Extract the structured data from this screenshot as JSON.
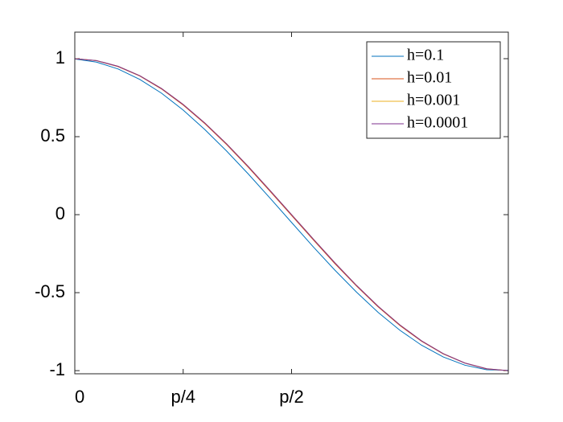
{
  "chart_data": {
    "type": "line",
    "x": [
      0,
      0.157,
      0.314,
      0.471,
      0.628,
      0.785,
      0.942,
      1.1,
      1.257,
      1.414,
      1.571,
      1.728,
      1.885,
      2.042,
      2.199,
      2.356,
      2.513,
      2.67,
      2.827,
      2.985,
      3.142
    ],
    "series": [
      {
        "name": "h=0.1",
        "color": "#0072BD",
        "values": [
          0.998,
          0.978,
          0.934,
          0.867,
          0.779,
          0.671,
          0.546,
          0.408,
          0.261,
          0.107,
          -0.05,
          -0.206,
          -0.356,
          -0.497,
          -0.627,
          -0.741,
          -0.837,
          -0.912,
          -0.965,
          -0.994,
          -0.998
        ]
      },
      {
        "name": "h=0.01",
        "color": "#D95319",
        "values": [
          1,
          0.987,
          0.949,
          0.889,
          0.806,
          0.703,
          0.584,
          0.45,
          0.304,
          0.151,
          -0.005,
          -0.161,
          -0.314,
          -0.458,
          -0.592,
          -0.711,
          -0.812,
          -0.893,
          -0.952,
          -0.989,
          -1
        ]
      },
      {
        "name": "h=0.001",
        "color": "#EDB120",
        "values": [
          1,
          0.988,
          0.951,
          0.891,
          0.809,
          0.707,
          0.588,
          0.454,
          0.309,
          0.156,
          0,
          -0.156,
          -0.309,
          -0.454,
          -0.588,
          -0.707,
          -0.809,
          -0.891,
          -0.951,
          -0.988,
          -1
        ]
      },
      {
        "name": "h=0.0001",
        "color": "#7E2F8E",
        "values": [
          1,
          0.988,
          0.951,
          0.891,
          0.809,
          0.707,
          0.588,
          0.454,
          0.309,
          0.156,
          0,
          -0.156,
          -0.309,
          -0.454,
          -0.588,
          -0.707,
          -0.809,
          -0.891,
          -0.951,
          -0.988,
          -1
        ]
      }
    ],
    "xlim": [
      0,
      3.1416
    ],
    "xticks": [
      0,
      {
        "value": 0.7854,
        "label": "p/4"
      },
      {
        "value": 1.5708,
        "label": "p/2"
      }
    ],
    "ylim": [
      -1.02,
      1.17
    ],
    "yticks": [
      -1,
      -0.5,
      0,
      0.5,
      1
    ],
    "legend": "top-right"
  }
}
